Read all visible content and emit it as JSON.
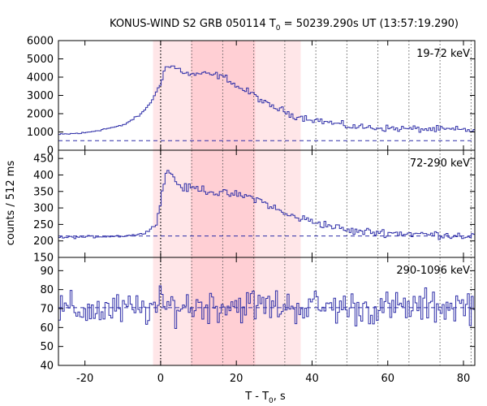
{
  "title_prefix": "KONUS-WIND S2 GRB 050114 T",
  "title_sub": "0",
  "title_suffix": " = 50239.290s UT (13:57:19.290)",
  "xlabel_prefix": "T - T",
  "xlabel_sub": "0",
  "xlabel_suffix": ", s",
  "ylabel": "counts / 512 ms",
  "colors": {
    "series": "#2f2fa8",
    "band_light": "#ffe6e8",
    "band_dark": "#ffcfd4",
    "frame": "#000000",
    "vline": "#555555"
  },
  "chart_data": {
    "type": "line",
    "style": "step",
    "xlim": [
      -27,
      83
    ],
    "xticks": [
      -20,
      0,
      20,
      40,
      60,
      80
    ],
    "shading": {
      "light": [
        -2,
        37
      ],
      "dark": [
        8,
        25
      ]
    },
    "vlines": [
      0,
      8.2,
      16.4,
      24.6,
      32.8,
      41.0,
      49.2,
      57.4,
      65.6,
      73.8,
      82.0
    ],
    "panels": [
      {
        "label": "19-72 keV",
        "ylim": [
          0,
          6000
        ],
        "yticks": [
          0,
          1000,
          2000,
          3000,
          4000,
          5000,
          6000
        ],
        "background": 520,
        "anchors": [
          [
            -27,
            850
          ],
          [
            -20,
            950
          ],
          [
            -10,
            1350
          ],
          [
            -5,
            2000
          ],
          [
            -2,
            2800
          ],
          [
            0,
            3700
          ],
          [
            1,
            4500
          ],
          [
            3,
            4600
          ],
          [
            6,
            4300
          ],
          [
            8,
            4100
          ],
          [
            10,
            4200
          ],
          [
            12,
            4150
          ],
          [
            15,
            4100
          ],
          [
            18,
            3900
          ],
          [
            20,
            3500
          ],
          [
            25,
            3000
          ],
          [
            28,
            2500
          ],
          [
            32,
            2200
          ],
          [
            35,
            1900
          ],
          [
            40,
            1700
          ],
          [
            45,
            1500
          ],
          [
            50,
            1300
          ],
          [
            60,
            1200
          ],
          [
            70,
            1150
          ],
          [
            83,
            1100
          ]
        ],
        "noise": 180
      },
      {
        "label": "72-290 keV",
        "ylim": [
          150,
          475
        ],
        "yticks": [
          150,
          200,
          250,
          300,
          350,
          400,
          450
        ],
        "background": 215,
        "anchors": [
          [
            -27,
            210
          ],
          [
            -10,
            215
          ],
          [
            -5,
            220
          ],
          [
            -1,
            250
          ],
          [
            0,
            330
          ],
          [
            1,
            380
          ],
          [
            2,
            420
          ],
          [
            4,
            380
          ],
          [
            6,
            360
          ],
          [
            10,
            360
          ],
          [
            15,
            345
          ],
          [
            20,
            340
          ],
          [
            25,
            330
          ],
          [
            30,
            300
          ],
          [
            33,
            280
          ],
          [
            40,
            260
          ],
          [
            45,
            245
          ],
          [
            50,
            230
          ],
          [
            60,
            225
          ],
          [
            70,
            220
          ],
          [
            83,
            215
          ]
        ],
        "noise": 12
      },
      {
        "label": "290-1096 keV",
        "ylim": [
          40,
          97
        ],
        "yticks": [
          40,
          50,
          60,
          70,
          80,
          90
        ],
        "background": 70.5,
        "anchors": [
          [
            -27,
            69
          ],
          [
            -10,
            69
          ],
          [
            -3,
            70
          ],
          [
            0,
            71
          ],
          [
            20,
            72
          ],
          [
            40,
            71
          ],
          [
            60,
            70
          ],
          [
            83,
            72
          ]
        ],
        "noise": 9
      }
    ]
  }
}
